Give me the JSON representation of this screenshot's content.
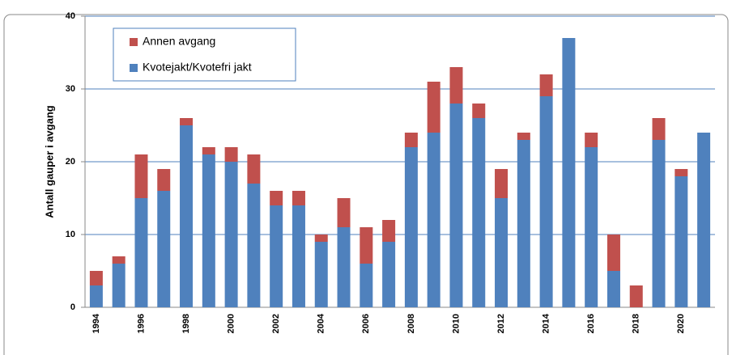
{
  "chart_data": {
    "type": "stacked_bar",
    "y_label": "Antall gauper i avgang",
    "categories": [
      "1994",
      null,
      "1996",
      null,
      "1998",
      null,
      "2000",
      null,
      "2002",
      null,
      "2004",
      null,
      "2006",
      null,
      "2008",
      null,
      "2010",
      null,
      "2012",
      null,
      "2014",
      null,
      "2016",
      null,
      "2018",
      null,
      "2020",
      null
    ],
    "series": [
      {
        "name": "Kvotejakt/Kvotefri jakt",
        "color": "#4f81bd",
        "values": [
          3,
          6,
          15,
          16,
          25,
          21,
          20,
          17,
          14,
          14,
          9,
          11,
          6,
          9,
          22,
          24,
          28,
          26,
          15,
          23,
          29,
          37,
          22,
          5,
          0,
          23,
          18,
          24
        ]
      },
      {
        "name": "Annen avgang",
        "color": "#c0504d",
        "values": [
          2,
          1,
          6,
          3,
          1,
          1,
          2,
          4,
          2,
          2,
          1,
          4,
          5,
          3,
          2,
          7,
          5,
          2,
          4,
          1,
          3,
          0,
          2,
          5,
          3,
          3,
          1,
          0
        ]
      }
    ],
    "ylim": [
      0,
      40
    ],
    "yticks": [
      0,
      10,
      20,
      30,
      40
    ],
    "grid": true,
    "legend": "upper left"
  }
}
